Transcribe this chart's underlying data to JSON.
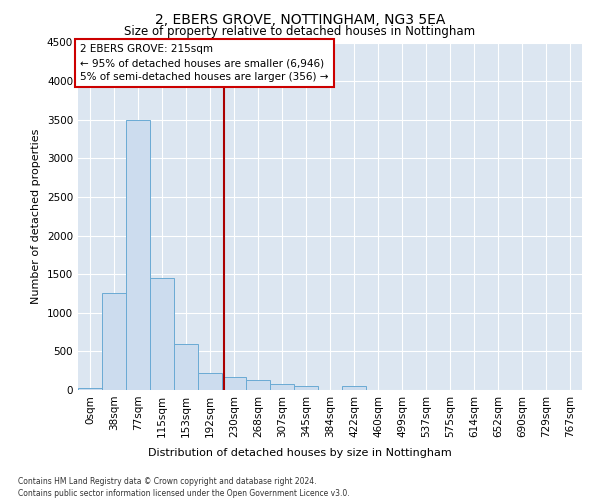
{
  "title1": "2, EBERS GROVE, NOTTINGHAM, NG3 5EA",
  "title2": "Size of property relative to detached houses in Nottingham",
  "xlabel": "Distribution of detached houses by size in Nottingham",
  "ylabel": "Number of detached properties",
  "bin_labels": [
    "0sqm",
    "38sqm",
    "77sqm",
    "115sqm",
    "153sqm",
    "192sqm",
    "230sqm",
    "268sqm",
    "307sqm",
    "345sqm",
    "384sqm",
    "422sqm",
    "460sqm",
    "499sqm",
    "537sqm",
    "575sqm",
    "614sqm",
    "652sqm",
    "690sqm",
    "729sqm",
    "767sqm"
  ],
  "bar_values": [
    30,
    1250,
    3500,
    1450,
    600,
    220,
    170,
    130,
    80,
    50,
    0,
    50,
    0,
    0,
    0,
    0,
    0,
    0,
    0,
    0,
    0
  ],
  "bar_color": "#ccdcee",
  "bar_edgecolor": "#6aaad4",
  "vline_x": 5.58,
  "vline_color": "#aa0000",
  "annotation_text": "2 EBERS GROVE: 215sqm\n← 95% of detached houses are smaller (6,946)\n5% of semi-detached houses are larger (356) →",
  "annotation_box_facecolor": "#ffffff",
  "annotation_box_edgecolor": "#cc0000",
  "footnote1": "Contains HM Land Registry data © Crown copyright and database right 2024.",
  "footnote2": "Contains public sector information licensed under the Open Government Licence v3.0.",
  "ylim": [
    0,
    4500
  ],
  "plot_background_color": "#dce6f1",
  "yticks": [
    0,
    500,
    1000,
    1500,
    2000,
    2500,
    3000,
    3500,
    4000,
    4500
  ]
}
